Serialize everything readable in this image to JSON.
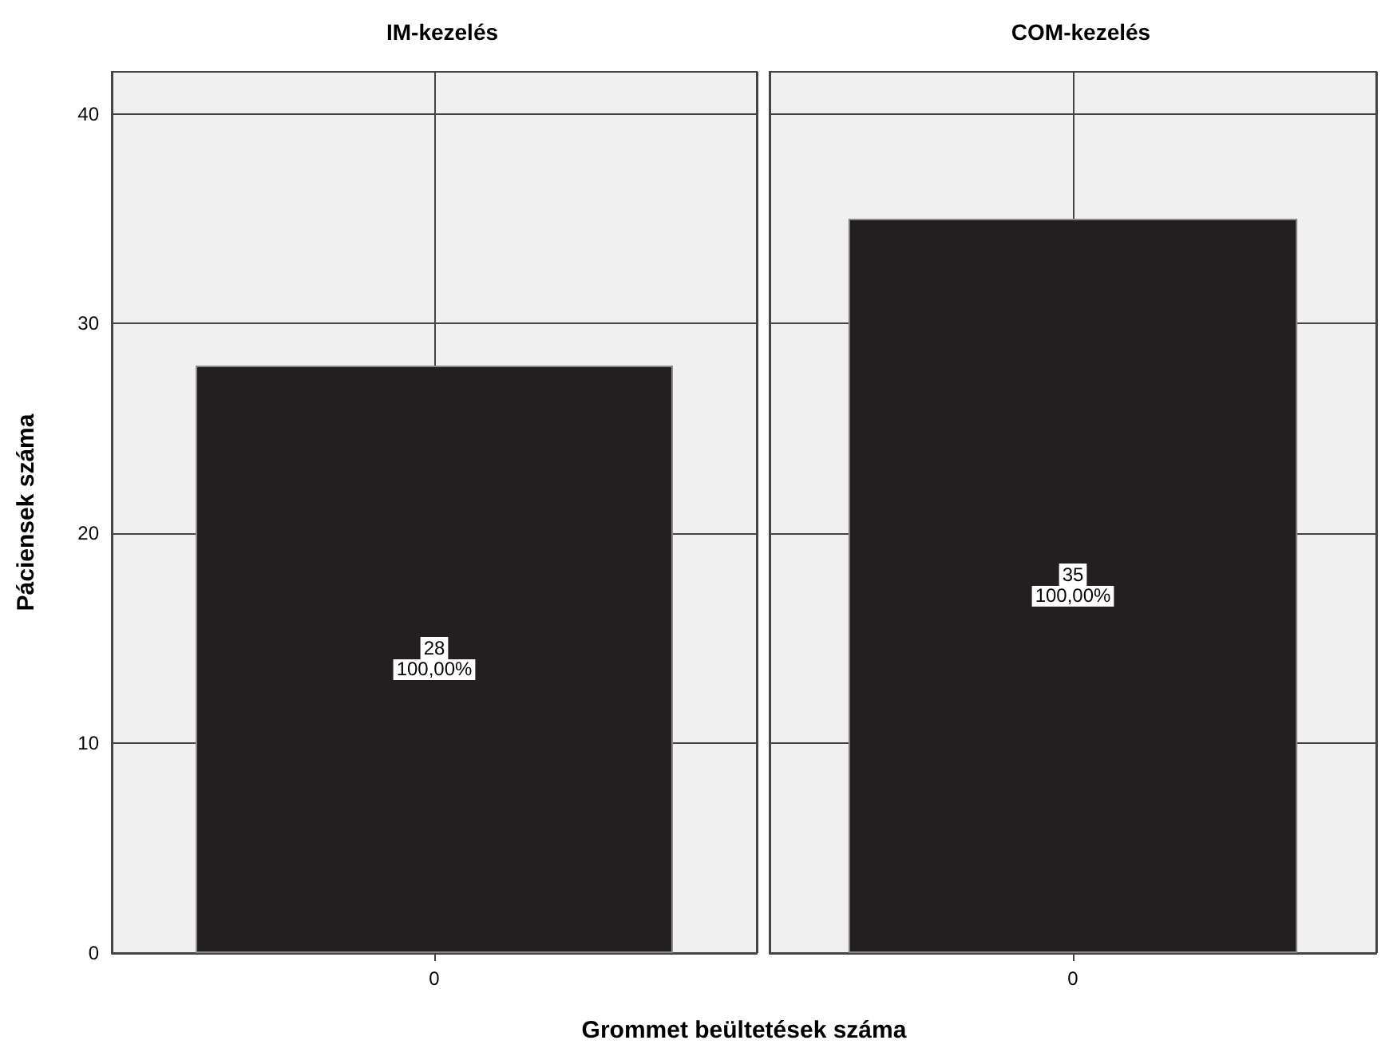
{
  "chart_data": [
    {
      "type": "bar",
      "title": "IM-kezelés",
      "xlabel": "Grommet beültetések száma",
      "ylabel": "Páciensek száma",
      "categories": [
        "0"
      ],
      "values": [
        28
      ],
      "data_labels": true,
      "annotations": [
        "100,00%"
      ],
      "color": "#231f20",
      "ylim": [
        0,
        42
      ],
      "yticks": [
        0,
        10,
        20,
        30,
        40
      ],
      "grid": true
    },
    {
      "type": "bar",
      "title": "COM-kezelés",
      "categories": [
        "0"
      ],
      "values": [
        35
      ],
      "data_labels": true,
      "annotations": [
        "100,00%"
      ],
      "color": "#231f20",
      "ylim": [
        0,
        42
      ],
      "yticks": [
        0,
        10,
        20,
        30,
        40
      ],
      "grid": true,
      "tick_labels": "x"
    }
  ]
}
